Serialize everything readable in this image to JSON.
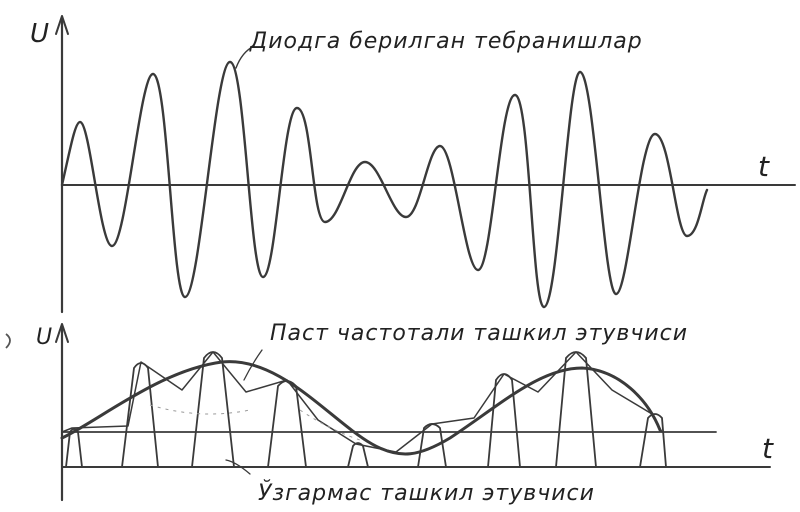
{
  "labels": {
    "u_axis_top": "U",
    "t_axis_top": "t",
    "caption_top": "Диодга берилган тебранишлар",
    "u_axis_bottom": "U",
    "t_axis_bottom": "t",
    "caption_low_freq": "Паст частотали ташкил этувчиси",
    "caption_dc": "Ўзгармас ташкил этувчиси"
  },
  "colors": {
    "ink": "#3a3a3a",
    "axis": "#333333",
    "paper": "#ffffff"
  }
}
